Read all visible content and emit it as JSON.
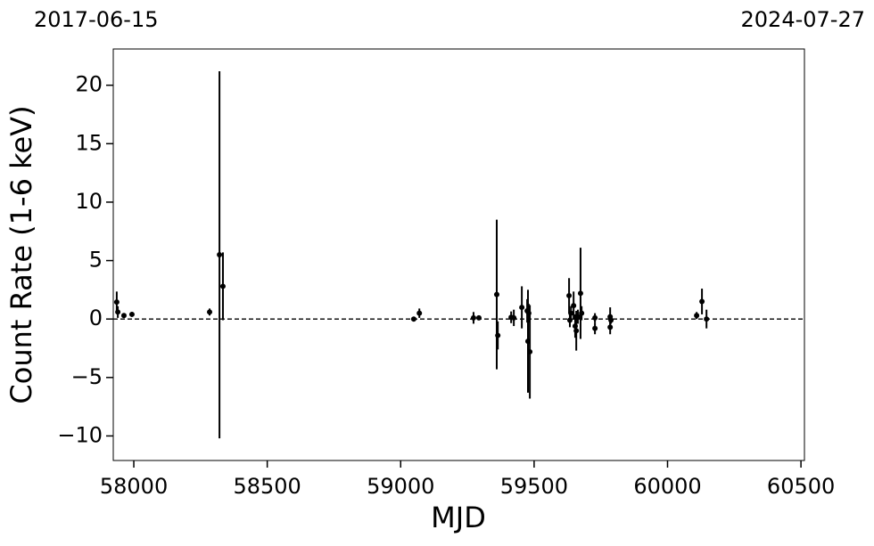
{
  "chart_data": {
    "type": "scatter",
    "x_label": "MJD",
    "y_label": "Count Rate (1-6 keV)",
    "annotations": [
      "2017-06-15",
      "2024-07-27"
    ],
    "xlim": [
      57923,
      60513
    ],
    "ylim": [
      -12.1,
      23.1
    ],
    "xticks": [
      58000,
      58500,
      59000,
      59500,
      60000,
      60500
    ],
    "yticks": [
      {
        "value": -10,
        "label": "−10"
      },
      {
        "value": -5,
        "label": "−5"
      },
      0,
      5,
      10,
      15,
      20
    ],
    "hline": 0,
    "color": "#000000",
    "x": [
      57936,
      57940,
      57963,
      57993,
      58284,
      58321,
      58334,
      59049,
      59070,
      59273,
      59293,
      59360,
      59364,
      59414,
      59424,
      59454,
      59474,
      59477,
      59480,
      59484,
      59631,
      59634,
      59638,
      59648,
      59654,
      59658,
      59664,
      59674,
      59678,
      59728,
      59728,
      59785,
      59785,
      59788,
      60109,
      60129,
      60146
    ],
    "values": [
      1.45,
      0.6,
      0.3,
      0.4,
      0.6,
      5.5,
      2.8,
      0.0,
      0.5,
      0.1,
      0.1,
      2.1,
      -1.4,
      0.15,
      0.1,
      1.0,
      0.7,
      -1.9,
      0.5,
      -2.8,
      2.0,
      -0.1,
      0.5,
      1.15,
      -0.6,
      -1.0,
      0.2,
      2.2,
      0.5,
      -0.8,
      0.1,
      0.2,
      -0.7,
      -0.1,
      0.3,
      1.5,
      0.0
    ],
    "errors": [
      0.9,
      0.5,
      0.2,
      0.2,
      0.3,
      15.7,
      2.9,
      0.2,
      0.4,
      0.5,
      0.2,
      6.4,
      1.2,
      0.5,
      0.7,
      1.8,
      1.0,
      4.4,
      0.8,
      4.0,
      1.5,
      0.6,
      0.6,
      1.2,
      1.0,
      1.7,
      0.6,
      3.9,
      0.6,
      0.5,
      0.4,
      0.8,
      0.6,
      0.3,
      0.3,
      1.1,
      0.8
    ]
  }
}
